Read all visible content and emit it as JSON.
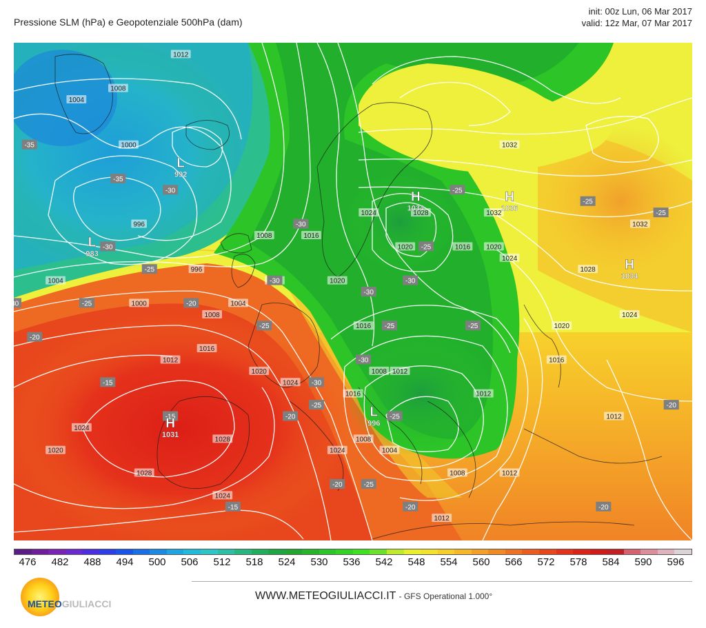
{
  "header": {
    "title": "Pressione SLM (hPa) e Geopotenziale 500hPa (dam)",
    "init": "init: 00z Lun, 06 Mar 2017",
    "valid": "valid: 12z Mar, 07 Mar 2017"
  },
  "map": {
    "pressure_centers": [
      {
        "type": "H",
        "value": "1034",
        "lon": 27,
        "lat": 62
      },
      {
        "type": "H",
        "value": "1036",
        "lon": 45,
        "lat": 62
      },
      {
        "type": "H",
        "value": "1034",
        "lon": 68,
        "lat": 56
      },
      {
        "type": "L",
        "value": "992",
        "lon": -18,
        "lat": 65
      },
      {
        "type": "L",
        "value": "983",
        "lon": -35,
        "lat": 58
      },
      {
        "type": "H",
        "value": "1031",
        "lon": -20,
        "lat": 42
      },
      {
        "type": "L",
        "value": "996",
        "lon": 19,
        "lat": 43
      }
    ],
    "isobar_labels": [
      {
        "value": "1012",
        "lon": -18,
        "lat": 75
      },
      {
        "value": "1008",
        "lon": -30,
        "lat": 72
      },
      {
        "value": "1004",
        "lon": -38,
        "lat": 71
      },
      {
        "value": "1000",
        "lon": -28,
        "lat": 67
      },
      {
        "value": "996",
        "lon": -26,
        "lat": 60
      },
      {
        "value": "996",
        "lon": -15,
        "lat": 56
      },
      {
        "value": "1000",
        "lon": -26,
        "lat": 53
      },
      {
        "value": "1004",
        "lon": -42,
        "lat": 55
      },
      {
        "value": "1004",
        "lon": -7,
        "lat": 53
      },
      {
        "value": "1008",
        "lon": -12,
        "lat": 52
      },
      {
        "value": "1008",
        "lon": -2,
        "lat": 59
      },
      {
        "value": "1008",
        "lon": 0,
        "lat": 55
      },
      {
        "value": "1012",
        "lon": -20,
        "lat": 48
      },
      {
        "value": "1016",
        "lon": -13,
        "lat": 49
      },
      {
        "value": "1020",
        "lon": -3,
        "lat": 47
      },
      {
        "value": "1020",
        "lon": -42,
        "lat": 40
      },
      {
        "value": "1024",
        "lon": -37,
        "lat": 42
      },
      {
        "value": "1024",
        "lon": 3,
        "lat": 46
      },
      {
        "value": "1024",
        "lon": -10,
        "lat": 36
      },
      {
        "value": "1028",
        "lon": -25,
        "lat": 38
      },
      {
        "value": "1028",
        "lon": -10,
        "lat": 41
      },
      {
        "value": "1024",
        "lon": 12,
        "lat": 40
      },
      {
        "value": "1016",
        "lon": 7,
        "lat": 59
      },
      {
        "value": "1020",
        "lon": 12,
        "lat": 55
      },
      {
        "value": "1024",
        "lon": 18,
        "lat": 61
      },
      {
        "value": "1028",
        "lon": 28,
        "lat": 61
      },
      {
        "value": "1032",
        "lon": 45,
        "lat": 67
      },
      {
        "value": "1032",
        "lon": 42,
        "lat": 61
      },
      {
        "value": "1032",
        "lon": 70,
        "lat": 60
      },
      {
        "value": "1024",
        "lon": 45,
        "lat": 57
      },
      {
        "value": "1020",
        "lon": 42,
        "lat": 58
      },
      {
        "value": "1016",
        "lon": 36,
        "lat": 58
      },
      {
        "value": "1028",
        "lon": 60,
        "lat": 56
      },
      {
        "value": "1024",
        "lon": 68,
        "lat": 52
      },
      {
        "value": "1020",
        "lon": 55,
        "lat": 51
      },
      {
        "value": "1016",
        "lon": 54,
        "lat": 48
      },
      {
        "value": "1012",
        "lon": 40,
        "lat": 45
      },
      {
        "value": "1020",
        "lon": 25,
        "lat": 58
      },
      {
        "value": "1016",
        "lon": 17,
        "lat": 51
      },
      {
        "value": "1012",
        "lon": 24,
        "lat": 47
      },
      {
        "value": "1008",
        "lon": 20,
        "lat": 47
      },
      {
        "value": "1008",
        "lon": 17,
        "lat": 41
      },
      {
        "value": "1004",
        "lon": 22,
        "lat": 40
      },
      {
        "value": "1008",
        "lon": 35,
        "lat": 38
      },
      {
        "value": "1012",
        "lon": 45,
        "lat": 38
      },
      {
        "value": "1012",
        "lon": 32,
        "lat": 34
      },
      {
        "value": "1016",
        "lon": 15,
        "lat": 45
      },
      {
        "value": "1012",
        "lon": 65,
        "lat": 43
      }
    ],
    "geopotential_labels": [
      {
        "value": "-35",
        "lon": -47,
        "lat": 67
      },
      {
        "value": "-35",
        "lon": -30,
        "lat": 64
      },
      {
        "value": "-30",
        "lon": -20,
        "lat": 63
      },
      {
        "value": "-30",
        "lon": -32,
        "lat": 58
      },
      {
        "value": "-25",
        "lon": -24,
        "lat": 56
      },
      {
        "value": "-25",
        "lon": -36,
        "lat": 53
      },
      {
        "value": "-30",
        "lon": -50,
        "lat": 53
      },
      {
        "value": "-20",
        "lon": -46,
        "lat": 50
      },
      {
        "value": "-20",
        "lon": -16,
        "lat": 53
      },
      {
        "value": "-15",
        "lon": -32,
        "lat": 46
      },
      {
        "value": "-15",
        "lon": -20,
        "lat": 43
      },
      {
        "value": "-15",
        "lon": -8,
        "lat": 35
      },
      {
        "value": "-20",
        "lon": 3,
        "lat": 43
      },
      {
        "value": "-25",
        "lon": 8,
        "lat": 44
      },
      {
        "value": "-30",
        "lon": 8,
        "lat": 46
      },
      {
        "value": "-30",
        "lon": 5,
        "lat": 60
      },
      {
        "value": "-30",
        "lon": 0,
        "lat": 55
      },
      {
        "value": "-25",
        "lon": -2,
        "lat": 51
      },
      {
        "value": "-30",
        "lon": 18,
        "lat": 54
      },
      {
        "value": "-30",
        "lon": 26,
        "lat": 55
      },
      {
        "value": "-30",
        "lon": 17,
        "lat": 48
      },
      {
        "value": "-25",
        "lon": 22,
        "lat": 51
      },
      {
        "value": "-25",
        "lon": 29,
        "lat": 58
      },
      {
        "value": "-25",
        "lon": 23,
        "lat": 43
      },
      {
        "value": "-25",
        "lon": 18,
        "lat": 37
      },
      {
        "value": "-20",
        "lon": 12,
        "lat": 37
      },
      {
        "value": "-20",
        "lon": 26,
        "lat": 35
      },
      {
        "value": "-25",
        "lon": 38,
        "lat": 51
      },
      {
        "value": "-25",
        "lon": 35,
        "lat": 63
      },
      {
        "value": "-25",
        "lon": 60,
        "lat": 62
      },
      {
        "value": "-25",
        "lon": 74,
        "lat": 61
      },
      {
        "value": "-20",
        "lon": 63,
        "lat": 35
      },
      {
        "value": "-20",
        "lon": 76,
        "lat": 44
      }
    ]
  },
  "colorbar": {
    "ticks": [
      "476",
      "482",
      "488",
      "494",
      "500",
      "506",
      "512",
      "518",
      "524",
      "530",
      "536",
      "542",
      "548",
      "554",
      "560",
      "566",
      "572",
      "578",
      "584",
      "590",
      "596"
    ],
    "colors": [
      "#5c1c86",
      "#6e1d9c",
      "#7a24b4",
      "#6b2ad0",
      "#4c2ee0",
      "#2c3fe8",
      "#1a55ea",
      "#1870e6",
      "#1c8ae2",
      "#1ea6e0",
      "#21bad8",
      "#2dc6c8",
      "#2cbfa6",
      "#26b67e",
      "#20ae5c",
      "#1ea642",
      "#22a630",
      "#26b42a",
      "#2cc427",
      "#33d323",
      "#3ee01f",
      "#6ae12a",
      "#bfea2c",
      "#e9ef2c",
      "#f4e12b",
      "#f7cd2a",
      "#f6b729",
      "#f4a027",
      "#f28a24",
      "#ef7222",
      "#ec5c1f",
      "#e9461c",
      "#e4311a",
      "#dc2318",
      "#cf1c18",
      "#c41e22",
      "#d5626e",
      "#dd8d9a",
      "#dfb3bd",
      "#dbd3d7"
    ]
  },
  "footer": {
    "website": "WWW.METEOGIULIACCI.IT",
    "model": "- GFS Operational 1.000°",
    "logo_text_a": "METEO",
    "logo_text_b": "GIULIACCI"
  }
}
